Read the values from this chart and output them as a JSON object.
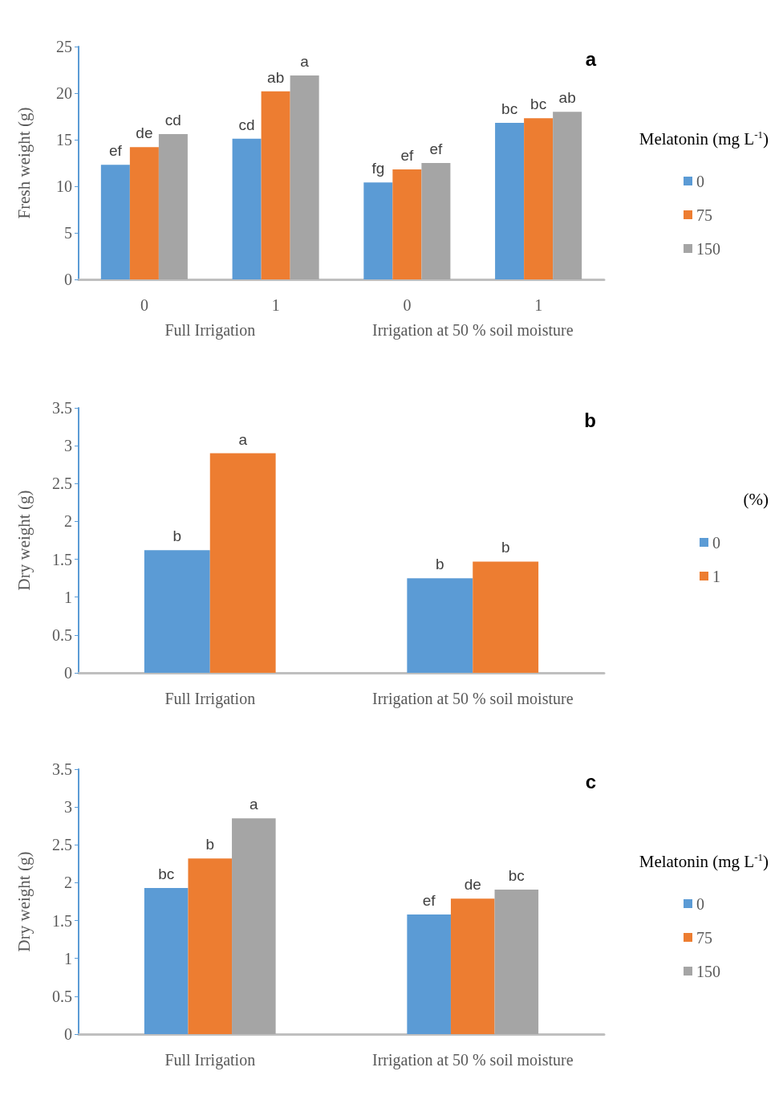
{
  "chart_data": [
    {
      "type": "bar",
      "title": "a",
      "categories": [
        "0",
        "1",
        "0",
        "1"
      ],
      "ylabel": "Fresh weight (g)",
      "legend_title": "Melatonin (mg L$^{-1}$)",
      "annotations": [
        "Full Irrigation",
        "Irrigation at 50 % soil moisture"
      ],
      "series": [
        {
          "name": "0",
          "color": "#5b9bd5",
          "values": [
            12.3,
            15.1,
            10.4,
            16.8
          ],
          "value_labels": [
            "ef",
            "cd",
            "fg",
            "bc"
          ]
        },
        {
          "name": "75",
          "color": "#ed7d31",
          "values": [
            14.2,
            20.2,
            11.8,
            17.3
          ],
          "value_labels": [
            "de",
            "ab",
            "ef",
            "bc"
          ]
        },
        {
          "name": "150",
          "color": "#a5a5a5",
          "values": [
            15.6,
            21.9,
            12.5,
            18.0
          ],
          "value_labels": [
            "cd",
            "a",
            "ef",
            "ab"
          ]
        }
      ],
      "ylim": [
        0,
        25
      ],
      "yticks": [
        0,
        5,
        10,
        15,
        20,
        25
      ],
      "grid": false,
      "legend": "right"
    },
    {
      "type": "bar",
      "title": "b",
      "categories": [
        "Full Irrigation",
        "Irrigation at 50 % soil moisture"
      ],
      "ylabel": "Dry weight (g)",
      "legend_title": "(%)",
      "series": [
        {
          "name": "0",
          "color": "#5b9bd5",
          "values": [
            1.62,
            1.25
          ],
          "value_labels": [
            "b",
            "b"
          ]
        },
        {
          "name": "1",
          "color": "#ed7d31",
          "values": [
            2.9,
            1.47
          ],
          "value_labels": [
            "a",
            "b"
          ]
        }
      ],
      "ylim": [
        0,
        3.5
      ],
      "yticks": [
        0,
        0.5,
        1,
        1.5,
        2,
        2.5,
        3,
        3.5
      ],
      "grid": false,
      "legend": "right"
    },
    {
      "type": "bar",
      "title": "c",
      "categories": [
        "Full Irrigation",
        "Irrigation at 50 % soil moisture"
      ],
      "ylabel": "Dry weight (g)",
      "legend_title": "Melatonin (mg L$^{-1}$)",
      "series": [
        {
          "name": "0",
          "color": "#5b9bd5",
          "values": [
            1.93,
            1.58
          ],
          "value_labels": [
            "bc",
            "ef"
          ]
        },
        {
          "name": "75",
          "color": "#ed7d31",
          "values": [
            2.32,
            1.79
          ],
          "value_labels": [
            "b",
            "de"
          ]
        },
        {
          "name": "150",
          "color": "#a5a5a5",
          "values": [
            2.85,
            1.91
          ],
          "value_labels": [
            "a",
            "bc"
          ]
        }
      ],
      "ylim": [
        0,
        3.5
      ],
      "yticks": [
        0,
        0.5,
        1,
        1.5,
        2,
        2.5,
        3,
        3.5
      ],
      "grid": false,
      "legend": "right"
    }
  ]
}
